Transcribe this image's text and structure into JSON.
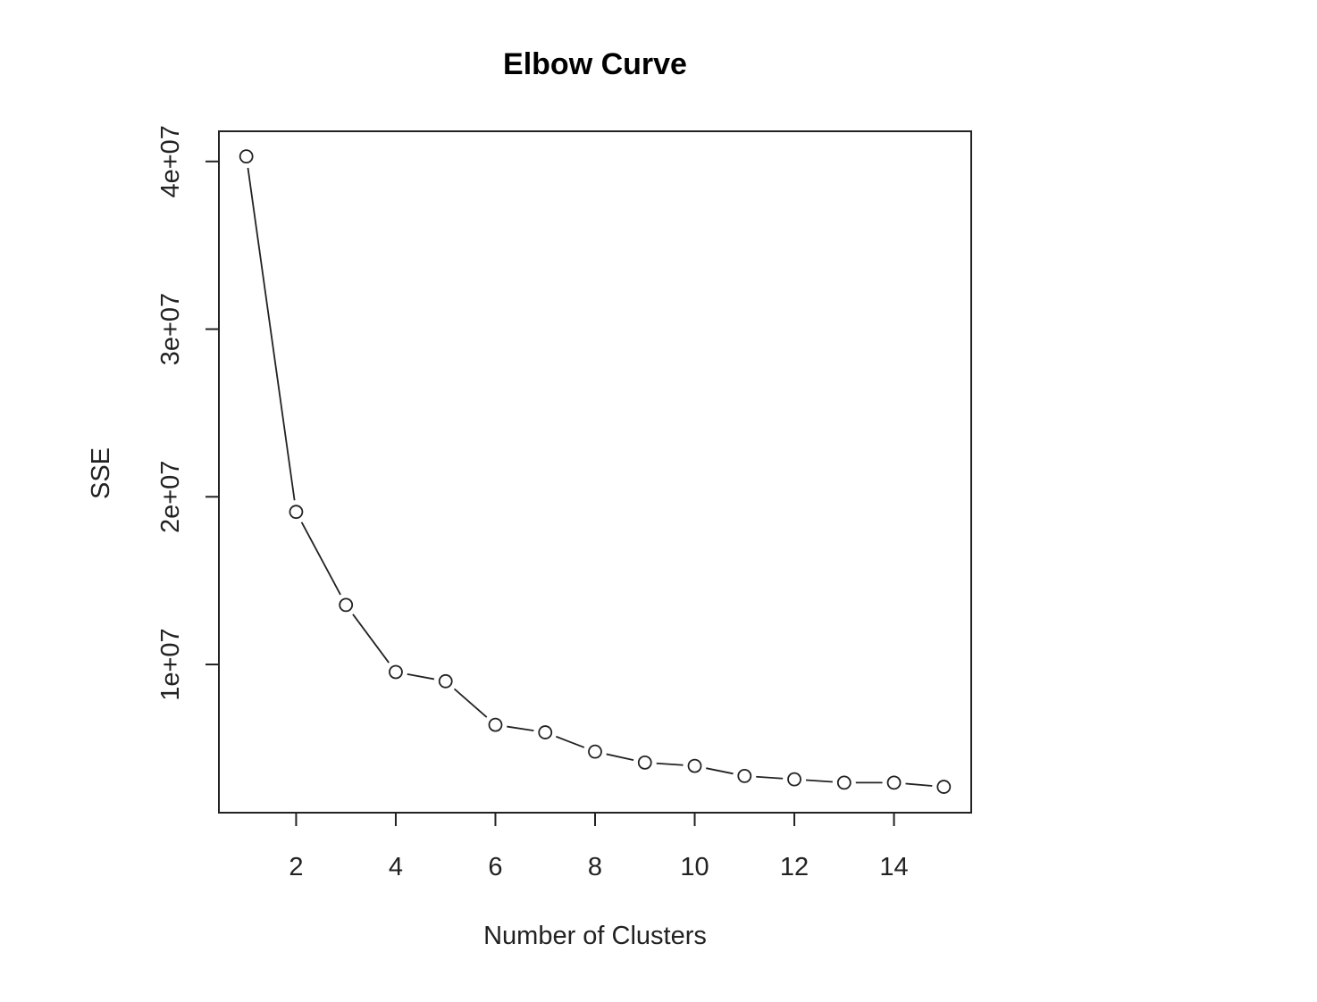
{
  "chart_data": {
    "type": "line",
    "title": "Elbow Curve",
    "xlabel": "Number of Clusters",
    "ylabel": "SSE",
    "xlim": [
      0.45,
      15.55
    ],
    "ylim": [
      1160000,
      41800000
    ],
    "x_ticks": [
      2,
      4,
      6,
      8,
      10,
      12,
      14
    ],
    "x_tick_labels": [
      "2",
      "4",
      "6",
      "8",
      "10",
      "12",
      "14"
    ],
    "y_ticks": [
      10000000,
      20000000,
      30000000,
      40000000
    ],
    "y_tick_labels": [
      "1e+07",
      "2e+07",
      "3e+07",
      "4e+07"
    ],
    "grid": false,
    "series": [
      {
        "style": "points-and-lines",
        "x": [
          1,
          2,
          3,
          4,
          5,
          6,
          7,
          8,
          9,
          10,
          11,
          12,
          13,
          14,
          15
        ],
        "y": [
          40300000,
          19100000,
          13550000,
          9550000,
          9000000,
          6400000,
          5950000,
          4800000,
          4150000,
          3950000,
          3350000,
          3150000,
          2950000,
          2950000,
          2700000
        ]
      }
    ]
  }
}
